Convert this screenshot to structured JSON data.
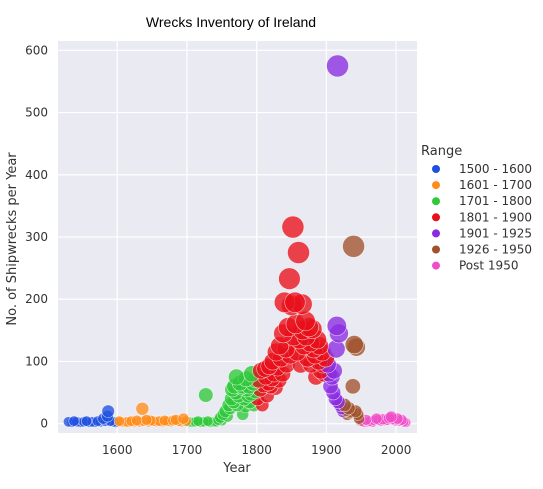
{
  "chart_data": {
    "type": "scatter",
    "title": "Wrecks Inventory of Ireland",
    "xlabel": "Year",
    "ylabel": "No. of Shipwrecks per Year",
    "xlim": [
      1515,
      2030
    ],
    "ylim": [
      -15,
      615
    ],
    "xticks": [
      1600,
      1700,
      1800,
      1900,
      2000
    ],
    "yticks": [
      0,
      100,
      200,
      300,
      400,
      500,
      600
    ],
    "grid": true,
    "legend": {
      "title": "Range",
      "placement": "right"
    },
    "series": [
      {
        "name": "1500 - 1600",
        "color": "#1f4fe0",
        "points": [
          [
            1530,
            3
          ],
          [
            1535,
            2
          ],
          [
            1538,
            4
          ],
          [
            1542,
            3
          ],
          [
            1547,
            2
          ],
          [
            1552,
            3
          ],
          [
            1556,
            4
          ],
          [
            1560,
            2
          ],
          [
            1564,
            3
          ],
          [
            1568,
            2
          ],
          [
            1572,
            4
          ],
          [
            1576,
            3
          ],
          [
            1580,
            8
          ],
          [
            1583,
            4
          ],
          [
            1586,
            12
          ],
          [
            1587,
            20
          ],
          [
            1590,
            4
          ],
          [
            1595,
            3
          ],
          [
            1598,
            2
          ]
        ]
      },
      {
        "name": "1601 - 1700",
        "color": "#ff8c1a",
        "points": [
          [
            1603,
            4
          ],
          [
            1606,
            3
          ],
          [
            1610,
            2
          ],
          [
            1614,
            3
          ],
          [
            1617,
            2
          ],
          [
            1620,
            4
          ],
          [
            1624,
            3
          ],
          [
            1628,
            5
          ],
          [
            1632,
            3
          ],
          [
            1636,
            24
          ],
          [
            1638,
            4
          ],
          [
            1642,
            6
          ],
          [
            1645,
            3
          ],
          [
            1648,
            5
          ],
          [
            1652,
            4
          ],
          [
            1655,
            3
          ],
          [
            1660,
            4
          ],
          [
            1664,
            3
          ],
          [
            1668,
            5
          ],
          [
            1672,
            4
          ],
          [
            1676,
            3
          ],
          [
            1680,
            5
          ],
          [
            1684,
            6
          ],
          [
            1688,
            4
          ],
          [
            1692,
            3
          ],
          [
            1695,
            8
          ],
          [
            1699,
            4
          ]
        ]
      },
      {
        "name": "1701 - 1800",
        "color": "#2ec83a",
        "points": [
          [
            1703,
            3
          ],
          [
            1707,
            2
          ],
          [
            1712,
            3
          ],
          [
            1716,
            4
          ],
          [
            1720,
            2
          ],
          [
            1724,
            3
          ],
          [
            1727,
            46
          ],
          [
            1730,
            4
          ],
          [
            1733,
            2
          ],
          [
            1738,
            3
          ],
          [
            1742,
            3
          ],
          [
            1745,
            6
          ],
          [
            1748,
            10
          ],
          [
            1750,
            5
          ],
          [
            1752,
            15
          ],
          [
            1755,
            20
          ],
          [
            1758,
            12
          ],
          [
            1760,
            30
          ],
          [
            1762,
            25
          ],
          [
            1764,
            40
          ],
          [
            1765,
            55
          ],
          [
            1767,
            35
          ],
          [
            1768,
            60
          ],
          [
            1770,
            50
          ],
          [
            1771,
            75
          ],
          [
            1772,
            30
          ],
          [
            1774,
            45
          ],
          [
            1776,
            65
          ],
          [
            1778,
            58
          ],
          [
            1780,
            15
          ],
          [
            1780,
            60
          ],
          [
            1782,
            40
          ],
          [
            1784,
            28
          ],
          [
            1785,
            72
          ],
          [
            1786,
            55
          ],
          [
            1788,
            45
          ],
          [
            1789,
            60
          ],
          [
            1790,
            35
          ],
          [
            1792,
            48
          ],
          [
            1793,
            80
          ],
          [
            1795,
            65
          ],
          [
            1796,
            30
          ],
          [
            1798,
            52
          ],
          [
            1799,
            70
          ]
        ]
      },
      {
        "name": "1801 - 1900",
        "color": "#e8101a",
        "points": [
          [
            1801,
            40
          ],
          [
            1803,
            70
          ],
          [
            1805,
            55
          ],
          [
            1806,
            85
          ],
          [
            1808,
            30
          ],
          [
            1810,
            62
          ],
          [
            1812,
            88
          ],
          [
            1813,
            75
          ],
          [
            1815,
            45
          ],
          [
            1817,
            65
          ],
          [
            1818,
            92
          ],
          [
            1820,
            60
          ],
          [
            1822,
            72
          ],
          [
            1823,
            100
          ],
          [
            1825,
            80
          ],
          [
            1827,
            58
          ],
          [
            1828,
            115
          ],
          [
            1830,
            90
          ],
          [
            1832,
            70
          ],
          [
            1833,
            125
          ],
          [
            1835,
            105
          ],
          [
            1837,
            80
          ],
          [
            1838,
            145
          ],
          [
            1840,
            195
          ],
          [
            1842,
            120
          ],
          [
            1843,
            95
          ],
          [
            1845,
            155
          ],
          [
            1847,
            233
          ],
          [
            1848,
            110
          ],
          [
            1850,
            190
          ],
          [
            1852,
            316
          ],
          [
            1853,
            140
          ],
          [
            1855,
            195
          ],
          [
            1856,
            160
          ],
          [
            1858,
            115
          ],
          [
            1860,
            275
          ],
          [
            1861,
            135
          ],
          [
            1863,
            95
          ],
          [
            1865,
            192
          ],
          [
            1866,
            150
          ],
          [
            1868,
            125
          ],
          [
            1870,
            165
          ],
          [
            1871,
            140
          ],
          [
            1873,
            105
          ],
          [
            1875,
            155
          ],
          [
            1877,
            130
          ],
          [
            1878,
            95
          ],
          [
            1880,
            152
          ],
          [
            1882,
            120
          ],
          [
            1884,
            110
          ],
          [
            1885,
            75
          ],
          [
            1887,
            135
          ],
          [
            1889,
            100
          ],
          [
            1890,
            125
          ],
          [
            1892,
            85
          ],
          [
            1894,
            115
          ],
          [
            1895,
            95
          ],
          [
            1897,
            80
          ],
          [
            1899,
            105
          ]
        ]
      },
      {
        "name": "1901 - 1925",
        "color": "#8a2be2",
        "points": [
          [
            1902,
            95
          ],
          [
            1904,
            80
          ],
          [
            1906,
            60
          ],
          [
            1908,
            75
          ],
          [
            1910,
            50
          ],
          [
            1911,
            85
          ],
          [
            1913,
            40
          ],
          [
            1914,
            120
          ],
          [
            1915,
            157
          ],
          [
            1916,
            575
          ],
          [
            1917,
            35
          ],
          [
            1918,
            145
          ],
          [
            1920,
            30
          ],
          [
            1922,
            25
          ],
          [
            1924,
            20
          ]
        ]
      },
      {
        "name": "1926 - 1950",
        "color": "#a0522d",
        "points": [
          [
            1926,
            30
          ],
          [
            1928,
            22
          ],
          [
            1930,
            15
          ],
          [
            1932,
            25
          ],
          [
            1934,
            18
          ],
          [
            1936,
            20
          ],
          [
            1938,
            60
          ],
          [
            1939,
            285
          ],
          [
            1940,
            127
          ],
          [
            1942,
            20
          ],
          [
            1943,
            123
          ],
          [
            1945,
            15
          ],
          [
            1947,
            8
          ],
          [
            1949,
            4
          ]
        ]
      },
      {
        "name": "Post 1950",
        "color": "#f04dc8",
        "points": [
          [
            1951,
            4
          ],
          [
            1954,
            2
          ],
          [
            1957,
            6
          ],
          [
            1960,
            3
          ],
          [
            1963,
            4
          ],
          [
            1966,
            2
          ],
          [
            1969,
            5
          ],
          [
            1972,
            8
          ],
          [
            1975,
            6
          ],
          [
            1978,
            4
          ],
          [
            1981,
            7
          ],
          [
            1984,
            5
          ],
          [
            1987,
            6
          ],
          [
            1990,
            9
          ],
          [
            1993,
            11
          ],
          [
            1996,
            7
          ],
          [
            1999,
            5
          ],
          [
            2002,
            8
          ],
          [
            2005,
            4
          ],
          [
            2008,
            6
          ],
          [
            2011,
            3
          ],
          [
            2014,
            2
          ]
        ]
      }
    ]
  }
}
